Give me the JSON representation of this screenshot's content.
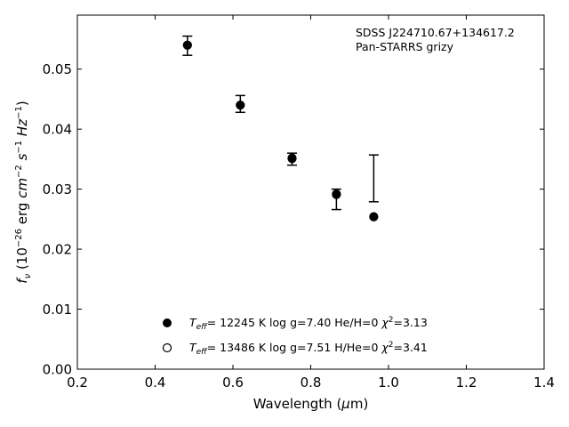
{
  "chart_data": {
    "type": "scatter",
    "annotation": [
      "SDSS J224710.67+134617.2",
      "Pan-STARRS grizy"
    ],
    "xlabel": "Wavelength (μm)",
    "ylabel": "f_ν (10^-26 erg cm^-2 s^-1 Hz^-1)",
    "xlim": [
      0.2,
      1.4
    ],
    "ylim": [
      0.0,
      0.059
    ],
    "xticks": [
      "0.2",
      "0.4",
      "0.6",
      "0.8",
      "1.0",
      "1.2",
      "1.4"
    ],
    "yticks": [
      "0.00",
      "0.01",
      "0.02",
      "0.03",
      "0.04",
      "0.05"
    ],
    "legend_position": "lower-center",
    "observed": {
      "x": [
        0.483,
        0.619,
        0.752,
        0.866,
        0.962
      ],
      "y": [
        0.0539,
        0.0442,
        0.035,
        0.0283,
        0.0318
      ],
      "yerr": [
        0.0016,
        0.0014,
        0.001,
        0.0017,
        0.0039
      ]
    },
    "series": [
      {
        "label": "T_eff= 12245 K  log g=7.40  He/H=0  χ²=3.13",
        "marker": "filled-circle",
        "x": [
          0.483,
          0.619,
          0.752,
          0.866,
          0.962
        ],
        "y": [
          0.054,
          0.044,
          0.0352,
          0.0292,
          0.0254
        ]
      },
      {
        "label": "T_eff= 13486 K  log g=7.51  H/He=0  χ²=3.41",
        "marker": "open-circle",
        "x": [
          0.483,
          0.619,
          0.752,
          0.866,
          0.962
        ],
        "y": [
          0.054,
          0.044,
          0.0351,
          0.0291,
          0.0254
        ]
      }
    ]
  }
}
